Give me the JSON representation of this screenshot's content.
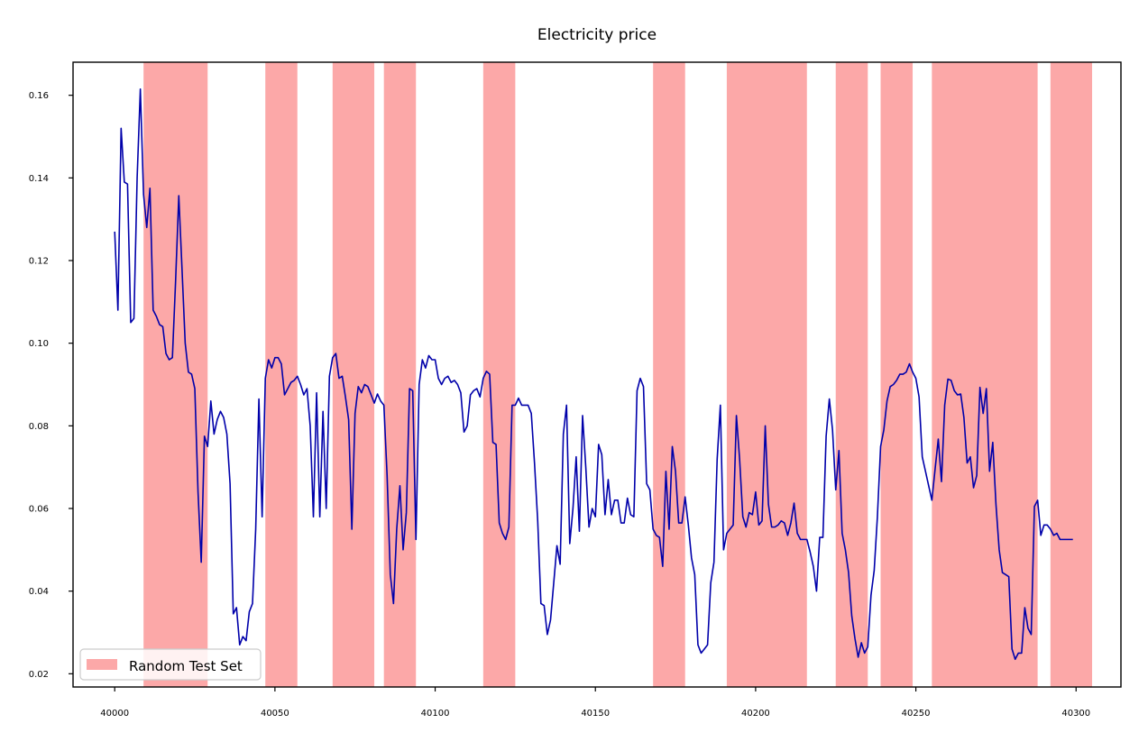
{
  "chart_data": {
    "type": "line",
    "title": "Electricity price",
    "xlabel": "",
    "ylabel": "",
    "xlim": [
      39987,
      40314
    ],
    "ylim": [
      0.0168,
      0.168
    ],
    "grid": false,
    "legend": {
      "location": "bottom-left",
      "entries": [
        "Random Test Set"
      ]
    },
    "xticks": [
      40000,
      40050,
      40100,
      40150,
      40200,
      40250,
      40300
    ],
    "xtick_labels": [
      "40000",
      "40050",
      "40100",
      "40150",
      "40200",
      "40250",
      "40300"
    ],
    "yticks": [
      0.02,
      0.04,
      0.06,
      0.08,
      0.1,
      0.12,
      0.14,
      0.16
    ],
    "ytick_labels": [
      "0.02",
      "0.04",
      "0.06",
      "0.08",
      "0.10",
      "0.12",
      "0.14",
      "0.16"
    ],
    "series": [
      {
        "name": "Electricity price",
        "color": "#0000aa",
        "x": [
          40000,
          40001,
          40002,
          40003,
          40004,
          40005,
          40006,
          40007,
          40008,
          40009,
          40010,
          40011,
          40012,
          40013,
          40014,
          40015,
          40016,
          40017,
          40018,
          40019,
          40020,
          40021,
          40022,
          40023,
          40024,
          40025,
          40026,
          40027,
          40028,
          40029,
          40030,
          40031,
          40032,
          40033,
          40034,
          40035,
          40036,
          40037,
          40038,
          40039,
          40040,
          40041,
          40042,
          40043,
          40044,
          40045,
          40046,
          40047,
          40048,
          40049,
          40050,
          40051,
          40052,
          40053,
          40054,
          40055,
          40056,
          40057,
          40058,
          40059,
          40060,
          40061,
          40062,
          40063,
          40064,
          40065,
          40066,
          40067,
          40068,
          40069,
          40070,
          40071,
          40072,
          40073,
          40074,
          40075,
          40076,
          40077,
          40078,
          40079,
          40080,
          40081,
          40082,
          40083,
          40084,
          40085,
          40086,
          40087,
          40088,
          40089,
          40090,
          40091,
          40092,
          40093,
          40094,
          40095,
          40096,
          40097,
          40098,
          40099,
          40100,
          40101,
          40102,
          40103,
          40104,
          40105,
          40106,
          40107,
          40108,
          40109,
          40110,
          40111,
          40112,
          40113,
          40114,
          40115,
          40116,
          40117,
          40118,
          40119,
          40120,
          40121,
          40122,
          40123,
          40124,
          40125,
          40126,
          40127,
          40128,
          40129,
          40130,
          40131,
          40132,
          40133,
          40134,
          40135,
          40136,
          40137,
          40138,
          40139,
          40140,
          40141,
          40142,
          40143,
          40144,
          40145,
          40146,
          40147,
          40148,
          40149,
          40150,
          40151,
          40152,
          40153,
          40154,
          40155,
          40156,
          40157,
          40158,
          40159,
          40160,
          40161,
          40162,
          40163,
          40164,
          40165,
          40166,
          40167,
          40168,
          40169,
          40170,
          40171,
          40172,
          40173,
          40174,
          40175,
          40176,
          40177,
          40178,
          40179,
          40180,
          40181,
          40182,
          40183,
          40184,
          40185,
          40186,
          40187,
          40188,
          40189,
          40190,
          40191,
          40192,
          40193,
          40194,
          40195,
          40196,
          40197,
          40198,
          40199,
          40200,
          40201,
          40202,
          40203,
          40204,
          40205,
          40206,
          40207,
          40208,
          40209,
          40210,
          40211,
          40212,
          40213,
          40214,
          40215,
          40216,
          40217,
          40218,
          40219,
          40220,
          40221,
          40222,
          40223,
          40224,
          40225,
          40226,
          40227,
          40228,
          40229,
          40230,
          40231,
          40232,
          40233,
          40234,
          40235,
          40236,
          40237,
          40238,
          40239,
          40240,
          40241,
          40242,
          40243,
          40244,
          40245,
          40246,
          40247,
          40248,
          40249,
          40250,
          40251,
          40252,
          40253,
          40254,
          40255,
          40256,
          40257,
          40258,
          40259,
          40260,
          40261,
          40262,
          40263,
          40264,
          40265,
          40266,
          40267,
          40268,
          40269,
          40270,
          40271,
          40272,
          40273,
          40274,
          40275,
          40276,
          40277,
          40278,
          40279,
          40280,
          40281,
          40282,
          40283,
          40284,
          40285,
          40286,
          40287,
          40288,
          40289,
          40290,
          40291,
          40292,
          40293,
          40294,
          40295,
          40296,
          40297,
          40298,
          40299
        ],
        "y": [
          0.127,
          0.108,
          0.152,
          0.139,
          0.1385,
          0.105,
          0.106,
          0.14,
          0.1615,
          0.136,
          0.128,
          0.1375,
          0.108,
          0.1065,
          0.1045,
          0.104,
          0.0975,
          0.096,
          0.0965,
          0.115,
          0.1357,
          0.118,
          0.1,
          0.093,
          0.0925,
          0.089,
          0.064,
          0.047,
          0.0775,
          0.075,
          0.086,
          0.078,
          0.0815,
          0.0835,
          0.082,
          0.078,
          0.066,
          0.0345,
          0.036,
          0.027,
          0.029,
          0.028,
          0.035,
          0.037,
          0.055,
          0.0865,
          0.058,
          0.0915,
          0.096,
          0.094,
          0.0965,
          0.0965,
          0.095,
          0.0875,
          0.089,
          0.0905,
          0.091,
          0.092,
          0.09,
          0.0875,
          0.089,
          0.08,
          0.058,
          0.088,
          0.058,
          0.0835,
          0.06,
          0.092,
          0.0965,
          0.0975,
          0.0915,
          0.092,
          0.087,
          0.0815,
          0.055,
          0.083,
          0.0895,
          0.088,
          0.09,
          0.0895,
          0.0875,
          0.0855,
          0.0877,
          0.086,
          0.085,
          0.068,
          0.044,
          0.037,
          0.055,
          0.0655,
          0.05,
          0.059,
          0.089,
          0.0885,
          0.0525,
          0.09,
          0.096,
          0.094,
          0.097,
          0.096,
          0.096,
          0.0915,
          0.09,
          0.0915,
          0.092,
          0.0905,
          0.091,
          0.09,
          0.088,
          0.0785,
          0.08,
          0.0875,
          0.0885,
          0.089,
          0.087,
          0.0915,
          0.0932,
          0.0925,
          0.076,
          0.0755,
          0.0565,
          0.054,
          0.0525,
          0.0555,
          0.085,
          0.085,
          0.0867,
          0.085,
          0.085,
          0.085,
          0.083,
          0.071,
          0.057,
          0.037,
          0.0365,
          0.0295,
          0.033,
          0.042,
          0.051,
          0.0465,
          0.078,
          0.085,
          0.0515,
          0.06,
          0.0725,
          0.0545,
          0.0825,
          0.07,
          0.0555,
          0.06,
          0.058,
          0.0755,
          0.073,
          0.0585,
          0.067,
          0.0585,
          0.062,
          0.062,
          0.0565,
          0.0565,
          0.0625,
          0.0585,
          0.058,
          0.0885,
          0.0915,
          0.0895,
          0.066,
          0.0645,
          0.055,
          0.0535,
          0.053,
          0.046,
          0.069,
          0.055,
          0.075,
          0.069,
          0.0565,
          0.0565,
          0.0628,
          0.056,
          0.048,
          0.044,
          0.027,
          0.025,
          0.026,
          0.027,
          0.042,
          0.047,
          0.072,
          0.085,
          0.05,
          0.054,
          0.055,
          0.056,
          0.0825,
          0.072,
          0.058,
          0.0555,
          0.059,
          0.0585,
          0.064,
          0.056,
          0.057,
          0.08,
          0.061,
          0.0555,
          0.0555,
          0.056,
          0.057,
          0.0565,
          0.0535,
          0.0565,
          0.0613,
          0.054,
          0.0525,
          0.0525,
          0.0525,
          0.0495,
          0.046,
          0.04,
          0.053,
          0.053,
          0.0775,
          0.0865,
          0.079,
          0.0645,
          0.074,
          0.054,
          0.05,
          0.0445,
          0.034,
          0.0285,
          0.024,
          0.0275,
          0.025,
          0.0265,
          0.039,
          0.045,
          0.058,
          0.075,
          0.079,
          0.086,
          0.0895,
          0.09,
          0.091,
          0.0925,
          0.0925,
          0.093,
          0.095,
          0.093,
          0.0915,
          0.087,
          0.0725,
          0.069,
          0.0655,
          0.062,
          0.0695,
          0.0768,
          0.0665,
          0.085,
          0.0913,
          0.091,
          0.0885,
          0.0875,
          0.0877,
          0.082,
          0.071,
          0.0725,
          0.065,
          0.068,
          0.0893,
          0.083,
          0.089,
          0.069,
          0.076,
          0.061,
          0.05,
          0.0445,
          0.044,
          0.0435,
          0.026,
          0.0235,
          0.025,
          0.025,
          0.036,
          0.031,
          0.0295,
          0.0605,
          0.062,
          0.0535,
          0.056,
          0.056,
          0.055,
          0.0535,
          0.054,
          0.0525,
          0.0525,
          0.0525,
          0.0525,
          0.0525
        ]
      }
    ],
    "highlight_ranges": {
      "name": "Random Test Set",
      "color": "#fca8a8",
      "ranges": [
        [
          40009,
          40029
        ],
        [
          40047,
          40057
        ],
        [
          40068,
          40081
        ],
        [
          40084,
          40094
        ],
        [
          40115,
          40125
        ],
        [
          40168,
          40178
        ],
        [
          40191,
          40216
        ],
        [
          40225,
          40235
        ],
        [
          40239,
          40249
        ],
        [
          40255,
          40288
        ],
        [
          40292,
          40305
        ]
      ]
    }
  }
}
